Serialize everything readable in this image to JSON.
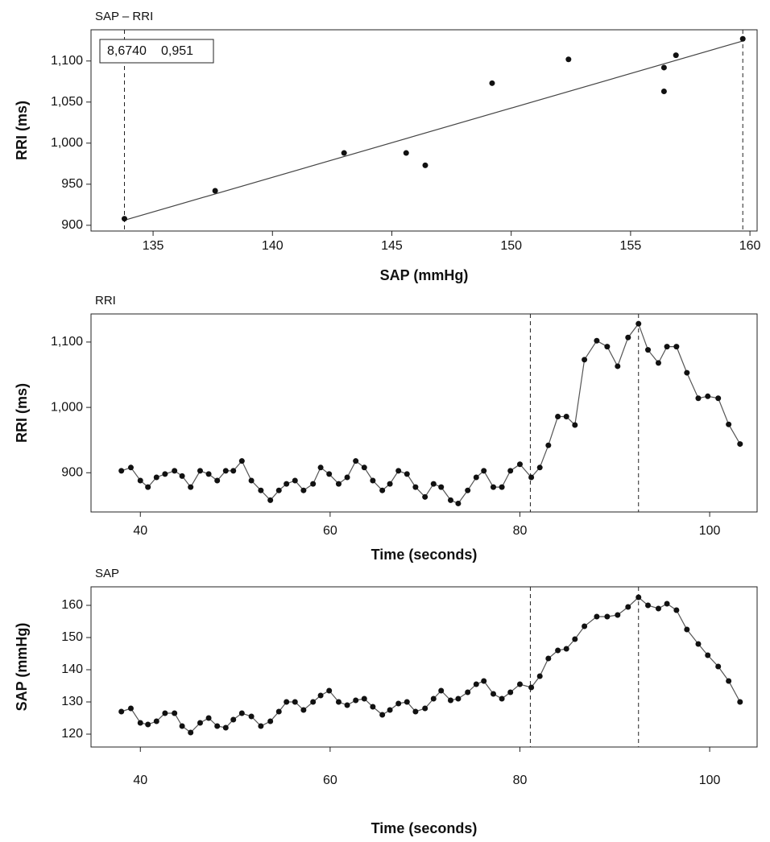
{
  "chart_data": [
    {
      "type": "scatter",
      "title": "SAP – RRI",
      "x_label": "SAP (mmHg)",
      "y_label": "RRI (ms)",
      "annotations": [
        "8,6740",
        "0,951"
      ],
      "x": [
        133.8,
        137.6,
        143.0,
        145.6,
        146.4,
        149.2,
        152.4,
        156.4,
        156.4,
        156.9,
        159.7
      ],
      "values": [
        908,
        942,
        988,
        988,
        973,
        1073,
        1102,
        1063,
        1092,
        1107,
        1127
      ],
      "color": "#111111",
      "fit_line": true,
      "xlim": [
        132.4,
        160.3
      ],
      "xticks": [
        135,
        140,
        145,
        150,
        155,
        160
      ],
      "ylim": [
        893,
        1138
      ],
      "yticks": [
        900,
        950,
        {
          "value": 1000,
          "label": "1,000"
        },
        {
          "value": 1050,
          "label": "1,050"
        },
        {
          "value": 1100,
          "label": "1,100"
        }
      ]
    },
    {
      "type": "line",
      "title": "RRI",
      "x_label": "Time (seconds)",
      "y_label": "RRI (ms)",
      "x": [
        38.0,
        39.0,
        40.0,
        40.8,
        41.7,
        42.6,
        43.6,
        44.4,
        45.3,
        46.3,
        47.2,
        48.1,
        49.0,
        49.8,
        50.7,
        51.7,
        52.7,
        53.7,
        54.6,
        55.4,
        56.3,
        57.2,
        58.2,
        59.0,
        59.9,
        60.9,
        61.8,
        62.7,
        63.6,
        64.5,
        65.5,
        66.3,
        67.2,
        68.1,
        69.0,
        70.0,
        70.9,
        71.7,
        72.7,
        73.5,
        74.5,
        75.4,
        76.2,
        77.2,
        78.1,
        79.0,
        80.0,
        81.2,
        82.1,
        83.0,
        84.0,
        84.9,
        85.8,
        86.8,
        88.1,
        89.2,
        90.3,
        91.4,
        92.5,
        93.5,
        94.6,
        95.5,
        96.5,
        97.6,
        98.8,
        99.8,
        100.9,
        102.0,
        103.2
      ],
      "values": [
        903,
        908,
        888,
        878,
        893,
        898,
        903,
        895,
        878,
        903,
        898,
        888,
        903,
        903,
        918,
        888,
        873,
        858,
        873,
        883,
        888,
        873,
        883,
        908,
        898,
        883,
        893,
        918,
        908,
        888,
        873,
        883,
        903,
        898,
        878,
        863,
        883,
        878,
        858,
        853,
        873,
        893,
        903,
        878,
        878,
        903,
        913,
        893,
        908,
        942,
        986,
        986,
        973,
        1073,
        1102,
        1093,
        1063,
        1107,
        1128,
        1088,
        1068,
        1093,
        1093,
        1053,
        1014,
        1017,
        1014,
        974,
        944
      ],
      "color": "#111111",
      "vlines": [
        81.1,
        92.5
      ],
      "xlim": [
        34.8,
        105.0
      ],
      "xticks": [
        40,
        60,
        80,
        100
      ],
      "ylim": [
        840,
        1143
      ],
      "yticks": [
        900,
        {
          "value": 1000,
          "label": "1,000"
        },
        {
          "value": 1100,
          "label": "1,100"
        }
      ]
    },
    {
      "type": "line",
      "title": "SAP",
      "x_label": "Time (seconds)",
      "y_label": "SAP (mmHg)",
      "x": [
        38.0,
        39.0,
        40.0,
        40.8,
        41.7,
        42.6,
        43.6,
        44.4,
        45.3,
        46.3,
        47.2,
        48.1,
        49.0,
        49.8,
        50.7,
        51.7,
        52.7,
        53.7,
        54.6,
        55.4,
        56.3,
        57.2,
        58.2,
        59.0,
        59.9,
        60.9,
        61.8,
        62.7,
        63.6,
        64.5,
        65.5,
        66.3,
        67.2,
        68.1,
        69.0,
        70.0,
        70.9,
        71.7,
        72.7,
        73.5,
        74.5,
        75.4,
        76.2,
        77.2,
        78.1,
        79.0,
        80.0,
        81.2,
        82.1,
        83.0,
        84.0,
        84.9,
        85.8,
        86.8,
        88.1,
        89.2,
        90.3,
        91.4,
        92.5,
        93.5,
        94.6,
        95.5,
        96.5,
        97.6,
        98.8,
        99.8,
        100.9,
        102.0,
        103.2
      ],
      "values": [
        127,
        128,
        123.5,
        123,
        124,
        126.5,
        126.5,
        122.5,
        120.5,
        123.5,
        125,
        122.5,
        122,
        124.5,
        126.5,
        125.5,
        122.5,
        124,
        127,
        130,
        130,
        127.5,
        130,
        132,
        133.5,
        130,
        129,
        130.5,
        131,
        128.5,
        126,
        127.5,
        129.5,
        130,
        127,
        128,
        131,
        133.5,
        130.5,
        131,
        133,
        135.5,
        136.5,
        132.5,
        131,
        133,
        135.5,
        134.5,
        138,
        143.5,
        146,
        146.5,
        149.5,
        153.5,
        156.5,
        156.5,
        157,
        159.5,
        162.5,
        160,
        159,
        160.5,
        158.5,
        152.5,
        148,
        144.5,
        141,
        136.5,
        130
      ],
      "color": "#111111",
      "vlines": [
        81.1,
        92.5
      ],
      "xlim": [
        34.8,
        105.0
      ],
      "xticks": [
        40,
        60,
        80,
        100
      ],
      "ylim": [
        116,
        165.75
      ],
      "yticks": [
        120,
        130,
        140,
        150,
        160
      ]
    }
  ]
}
